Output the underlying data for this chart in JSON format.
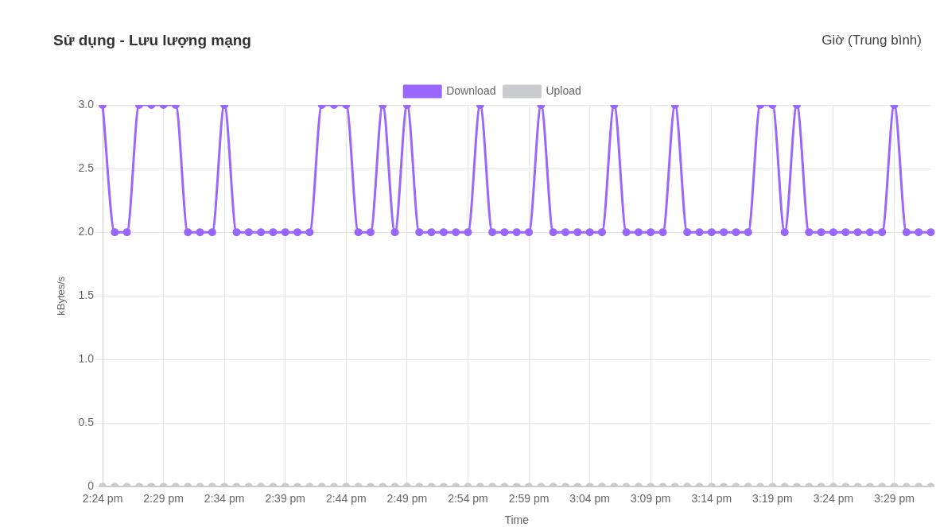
{
  "chart_data": {
    "type": "line",
    "title": "Sử dụng - Lưu lượng mạng",
    "annotations": [
      "Giờ (Trung bình)"
    ],
    "xlabel": "Time",
    "ylabel": "kBytes/s",
    "categories": [
      "2:24 pm",
      null,
      null,
      null,
      null,
      "2:29 pm",
      null,
      null,
      null,
      null,
      "2:34 pm",
      null,
      null,
      null,
      null,
      "2:39 pm",
      null,
      null,
      null,
      null,
      "2:44 pm",
      null,
      null,
      null,
      null,
      "2:49 pm",
      null,
      null,
      null,
      null,
      "2:54 pm",
      null,
      null,
      null,
      null,
      "2:59 pm",
      null,
      null,
      null,
      null,
      "3:04 pm",
      null,
      null,
      null,
      null,
      "3:09 pm",
      null,
      null,
      null,
      null,
      "3:14 pm",
      null,
      null,
      null,
      null,
      "3:19 pm",
      null,
      null,
      null,
      null,
      "3:24 pm",
      null,
      null,
      null,
      null,
      "3:29 pm",
      null,
      null,
      null
    ],
    "series": [
      {
        "name": "Download",
        "color": "#9966ff",
        "values": [
          3,
          2,
          2,
          3,
          3,
          3,
          3,
          2,
          2,
          2,
          3,
          2,
          2,
          2,
          2,
          2,
          2,
          2,
          3,
          3,
          3,
          2,
          2,
          3,
          2,
          3,
          2,
          2,
          2,
          2,
          2,
          3,
          2,
          2,
          2,
          2,
          3,
          2,
          2,
          2,
          2,
          2,
          3,
          2,
          2,
          2,
          2,
          3,
          2,
          2,
          2,
          2,
          2,
          2,
          3,
          3,
          2,
          3,
          2,
          2,
          2,
          2,
          2,
          2,
          2,
          3,
          2,
          2,
          2
        ]
      },
      {
        "name": "Upload",
        "color": "#c9cbcf",
        "values": [
          0,
          0,
          0,
          0,
          0,
          0,
          0,
          0,
          0,
          0,
          0,
          0,
          0,
          0,
          0,
          0,
          0,
          0,
          0,
          0,
          0,
          0,
          0,
          0,
          0,
          0,
          0,
          0,
          0,
          0,
          0,
          0,
          0,
          0,
          0,
          0,
          0,
          0,
          0,
          0,
          0,
          0,
          0,
          0,
          0,
          0,
          0,
          0,
          0,
          0,
          0,
          0,
          0,
          0,
          0,
          0,
          0,
          0,
          0,
          0,
          0,
          0,
          0,
          0,
          0,
          0,
          0,
          0,
          0
        ]
      }
    ],
    "ylim": [
      0,
      3
    ],
    "yticks": [
      0,
      0.5,
      {
        "value": 1,
        "label": "1.0"
      },
      1.5,
      {
        "value": 2,
        "label": "2.0"
      },
      2.5,
      {
        "value": 3,
        "label": "3.0"
      }
    ],
    "grid": true,
    "legend": "top",
    "marker": "circle",
    "line_style": "solid"
  }
}
